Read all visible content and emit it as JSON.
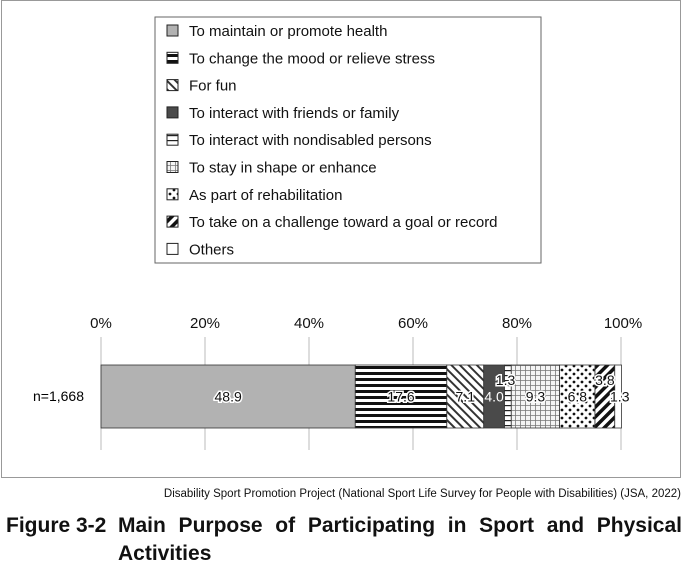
{
  "chart_data": {
    "type": "bar",
    "orientation": "horizontal-stacked-percent",
    "categories": [
      "n=1,668"
    ],
    "series": [
      {
        "name": "To maintain or promote health",
        "values": [
          48.9
        ],
        "label": "48.9",
        "pattern": "solid-gray"
      },
      {
        "name": "To change the mood or relieve stress",
        "values": [
          17.6
        ],
        "label": "17.6",
        "pattern": "horizontal-stripes"
      },
      {
        "name": "For fun",
        "values": [
          7.1
        ],
        "label": "7.1",
        "pattern": "diagonal-thin"
      },
      {
        "name": "To interact with friends or family",
        "values": [
          4.0
        ],
        "label": "4.0",
        "pattern": "solid-dark"
      },
      {
        "name": "To interact with nondisabled persons",
        "values": [
          1.3
        ],
        "label": "1.3",
        "pattern": "horizontal-thin"
      },
      {
        "name": "To stay in shape or enhance",
        "values": [
          9.3
        ],
        "label": "9.3",
        "pattern": "grid"
      },
      {
        "name": "As part of rehabilitation",
        "values": [
          6.8
        ],
        "label": "6.8",
        "pattern": "dots"
      },
      {
        "name": "To take on a challenge toward a goal or record",
        "values": [
          3.8
        ],
        "label": "3.8",
        "pattern": "diagonal-thick"
      },
      {
        "name": "Others",
        "values": [
          1.3
        ],
        "label": "1.3",
        "pattern": "white"
      }
    ],
    "x_ticks": [
      "0%",
      "20%",
      "40%",
      "60%",
      "80%",
      "100%"
    ],
    "xlim": [
      0,
      100
    ],
    "grid": true,
    "legend_position": "top-center"
  },
  "source": "Disability Sport Promotion Project (National Sport Life Survey for People with Disabilities) (JSA, 2022)",
  "caption": {
    "number": "Figure 3-2",
    "text": "Main Purpose of Participating in Sport and Physical Activities"
  }
}
